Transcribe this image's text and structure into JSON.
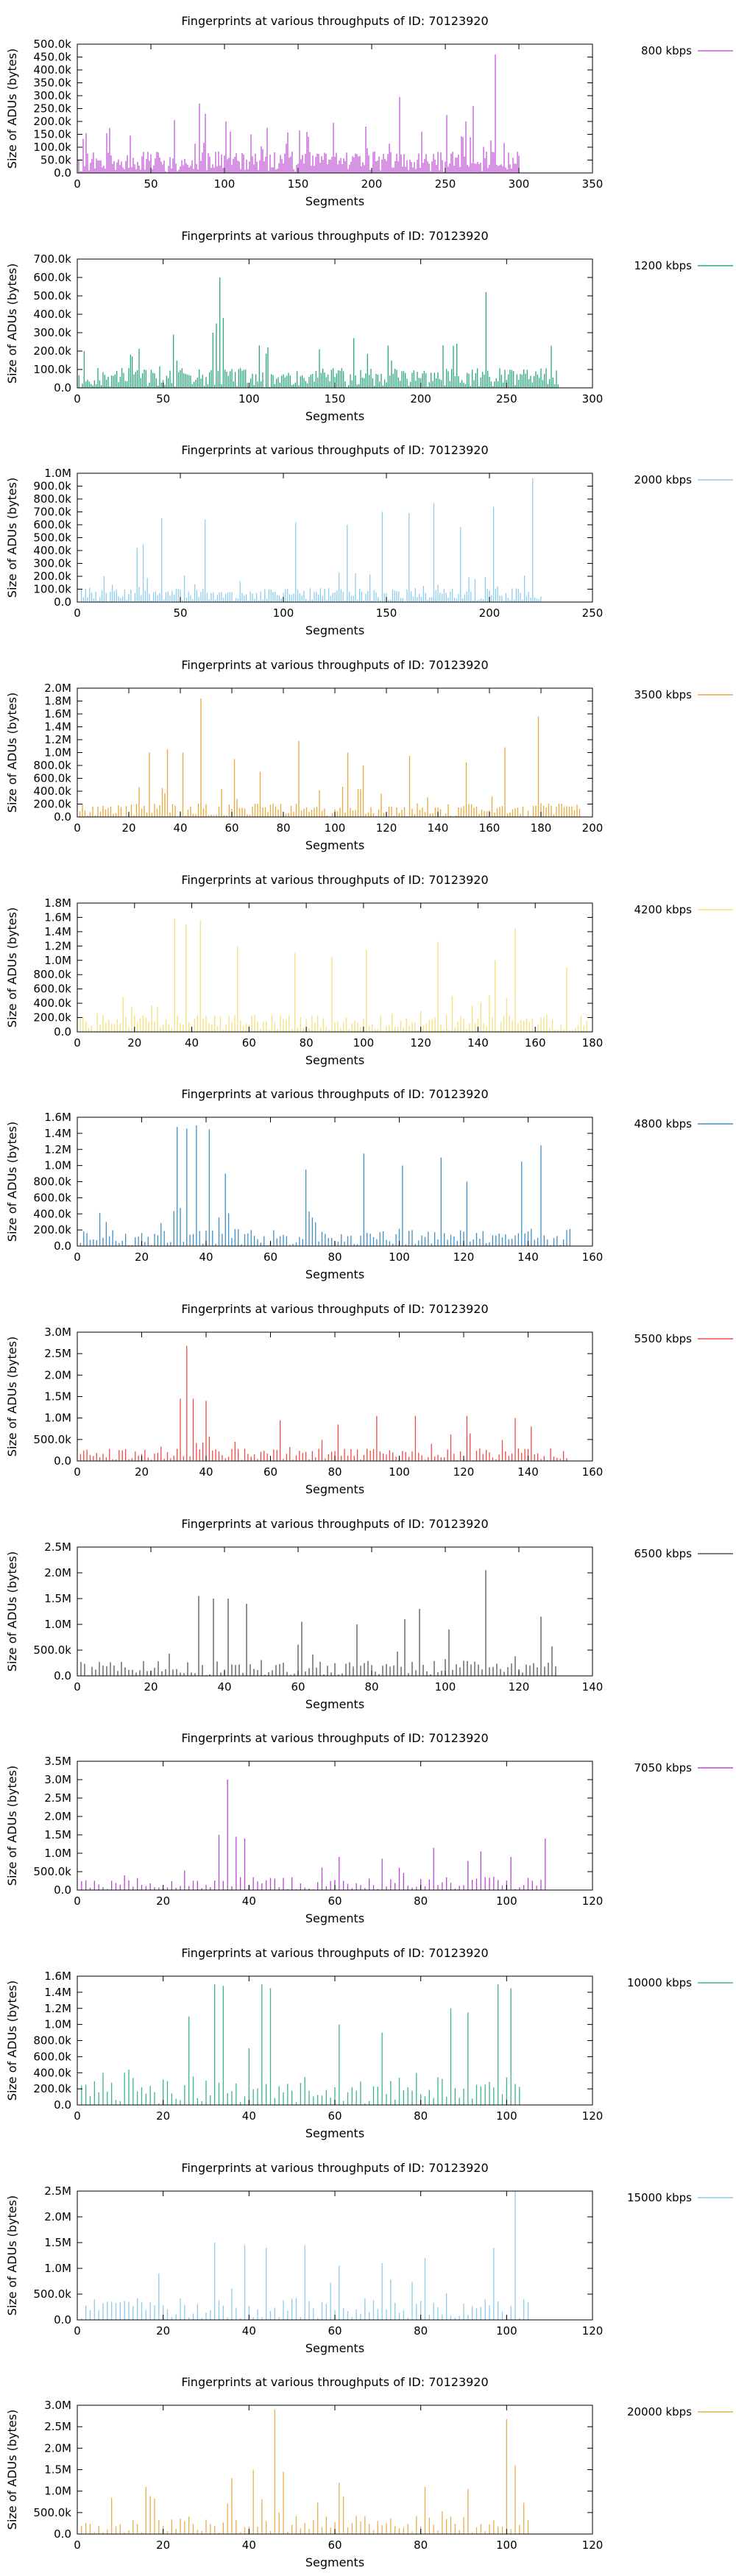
{
  "chart_data": [
    {
      "type": "bar",
      "title": "Fingerprints at various throughputs of ID: 70123920",
      "xlabel": "Segments",
      "ylabel": "Size of ADUs (bytes)",
      "legend": "800 kbps",
      "legend_position": "top-right",
      "color": "#c45bd6",
      "xlim": [
        0,
        350
      ],
      "ylim": [
        0,
        500000
      ],
      "xticks": [
        0,
        50,
        100,
        150,
        200,
        250,
        300,
        350
      ],
      "yticks": [
        0,
        50000,
        100000,
        150000,
        200000,
        250000,
        300000,
        350000,
        400000,
        450000,
        500000
      ],
      "ytick_labels": [
        "0.0",
        "50.0k",
        "100.0k",
        "150.0k",
        "200.0k",
        "250.0k",
        "300.0k",
        "350.0k",
        "400.0k",
        "450.0k",
        "500.0k"
      ],
      "grid": false,
      "n": 300,
      "peaks": [
        [
          283,
          460000
        ],
        [
          82,
          270000
        ],
        [
          218,
          295000
        ],
        [
          86,
          230000
        ],
        [
          100,
          200000
        ],
        [
          250,
          225000
        ],
        [
          173,
          195000
        ],
        [
          263,
          200000
        ],
        [
          65,
          205000
        ],
        [
          195,
          180000
        ],
        [
          128,
          175000
        ],
        [
          150,
          165000
        ],
        [
          5,
          155000
        ],
        [
          35,
          145000
        ],
        [
          117,
          150000
        ],
        [
          268,
          260000
        ],
        [
          233,
          160000
        ]
      ],
      "base": 70000
    },
    {
      "type": "bar",
      "title": "Fingerprints at various throughputs of ID: 70123920",
      "xlabel": "Segments",
      "ylabel": "Size of ADUs (bytes)",
      "legend": "1200 kbps",
      "legend_position": "top-right",
      "color": "#2aa87a",
      "xlim": [
        0,
        300
      ],
      "ylim": [
        0,
        700000
      ],
      "xticks": [
        0,
        50,
        100,
        150,
        200,
        250,
        300
      ],
      "yticks": [
        0,
        100000,
        200000,
        300000,
        400000,
        500000,
        600000,
        700000
      ],
      "ytick_labels": [
        "0.0",
        "100.0k",
        "200.0k",
        "300.0k",
        "400.0k",
        "500.0k",
        "600.0k",
        "700.0k"
      ],
      "grid": false,
      "n": 280,
      "peaks": [
        [
          82,
          600000
        ],
        [
          237,
          520000
        ],
        [
          84,
          380000
        ],
        [
          80,
          350000
        ],
        [
          78,
          300000
        ],
        [
          55,
          290000
        ],
        [
          160,
          270000
        ],
        [
          220,
          240000
        ],
        [
          180,
          230000
        ],
        [
          110,
          220000
        ],
        [
          140,
          210000
        ],
        [
          3,
          200000
        ],
        [
          30,
          180000
        ]
      ],
      "base": 90000
    },
    {
      "type": "bar",
      "title": "Fingerprints at various throughputs of ID: 70123920",
      "xlabel": "Segments",
      "ylabel": "Size of ADUs (bytes)",
      "legend": "2000 kbps",
      "legend_position": "top-right",
      "color": "#8ccdf2",
      "xlim": [
        0,
        250
      ],
      "ylim": [
        0,
        1000000
      ],
      "xticks": [
        0,
        50,
        100,
        150,
        200,
        250
      ],
      "yticks": [
        0,
        100000,
        200000,
        300000,
        400000,
        500000,
        600000,
        700000,
        800000,
        900000,
        1000000
      ],
      "ytick_labels": [
        "0.0",
        "100.0k",
        "200.0k",
        "300.0k",
        "400.0k",
        "500.0k",
        "600.0k",
        "700.0k",
        "800.0k",
        "900.0k",
        "1.0M"
      ],
      "grid": false,
      "n": 225,
      "peaks": [
        [
          220,
          960000
        ],
        [
          172,
          770000
        ],
        [
          201,
          740000
        ],
        [
          147,
          700000
        ],
        [
          160,
          690000
        ],
        [
          40,
          650000
        ],
        [
          61,
          640000
        ],
        [
          105,
          620000
        ],
        [
          130,
          600000
        ],
        [
          185,
          580000
        ],
        [
          31,
          450000
        ],
        [
          28,
          420000
        ],
        [
          12,
          200000
        ]
      ],
      "base": 90000
    },
    {
      "type": "bar",
      "title": "Fingerprints at various throughputs of ID: 70123920",
      "xlabel": "Segments",
      "ylabel": "Size of ADUs (bytes)",
      "legend": "3500 kbps",
      "legend_position": "top-right",
      "color": "#e5a83c",
      "xlim": [
        0,
        200
      ],
      "ylim": [
        0,
        2000000
      ],
      "xticks": [
        0,
        20,
        40,
        60,
        80,
        100,
        120,
        140,
        160,
        180,
        200
      ],
      "yticks": [
        0,
        200000,
        400000,
        600000,
        800000,
        1000000,
        1200000,
        1400000,
        1600000,
        1800000,
        2000000
      ],
      "ytick_labels": [
        "0.0",
        "200.0k",
        "400.0k",
        "600.0k",
        "800.0k",
        "1.0M",
        "1.2M",
        "1.4M",
        "1.6M",
        "1.8M",
        "2.0M"
      ],
      "grid": false,
      "n": 195,
      "peaks": [
        [
          47,
          1840000
        ],
        [
          178,
          1560000
        ],
        [
          85,
          1180000
        ],
        [
          104,
          1000000
        ],
        [
          128,
          950000
        ],
        [
          34,
          1050000
        ],
        [
          27,
          1000000
        ],
        [
          40,
          1000000
        ],
        [
          60,
          900000
        ],
        [
          150,
          850000
        ],
        [
          165,
          1080000
        ],
        [
          110,
          800000
        ],
        [
          70,
          700000
        ]
      ],
      "base": 180000
    },
    {
      "type": "bar",
      "title": "Fingerprints at various throughputs of ID: 70123920",
      "xlabel": "Segments",
      "ylabel": "Size of ADUs (bytes)",
      "legend": "4200 kbps",
      "legend_position": "top-right",
      "color": "#f5e07a",
      "xlim": [
        0,
        180
      ],
      "ylim": [
        0,
        1800000
      ],
      "xticks": [
        0,
        20,
        40,
        60,
        80,
        100,
        120,
        140,
        160,
        180
      ],
      "yticks": [
        0,
        200000,
        400000,
        600000,
        800000,
        1000000,
        1200000,
        1400000,
        1600000,
        1800000
      ],
      "ytick_labels": [
        "0.0",
        "200.0k",
        "400.0k",
        "600.0k",
        "800.0k",
        "1.0M",
        "1.2M",
        "1.4M",
        "1.6M",
        "1.8M"
      ],
      "grid": false,
      "n": 178,
      "peaks": [
        [
          33,
          1580000
        ],
        [
          37,
          1500000
        ],
        [
          42,
          1560000
        ],
        [
          152,
          1450000
        ],
        [
          125,
          1260000
        ],
        [
          100,
          1150000
        ],
        [
          75,
          1100000
        ],
        [
          55,
          1200000
        ],
        [
          145,
          1000000
        ],
        [
          170,
          900000
        ],
        [
          88,
          1050000
        ]
      ],
      "base": 200000
    },
    {
      "type": "bar",
      "title": "Fingerprints at various throughputs of ID: 70123920",
      "xlabel": "Segments",
      "ylabel": "Size of ADUs (bytes)",
      "legend": "4800 kbps",
      "legend_position": "top-right",
      "color": "#3d8fc6",
      "xlim": [
        0,
        160
      ],
      "ylim": [
        0,
        1600000
      ],
      "xticks": [
        0,
        20,
        40,
        60,
        80,
        100,
        120,
        140,
        160
      ],
      "yticks": [
        0,
        200000,
        400000,
        600000,
        800000,
        1000000,
        1200000,
        1400000,
        1600000
      ],
      "ytick_labels": [
        "0.0",
        "200.0k",
        "400.0k",
        "600.0k",
        "800.0k",
        "1.0M",
        "1.2M",
        "1.4M",
        "1.6M"
      ],
      "grid": false,
      "n": 153,
      "peaks": [
        [
          30,
          1480000
        ],
        [
          33,
          1460000
        ],
        [
          36,
          1500000
        ],
        [
          40,
          1450000
        ],
        [
          143,
          1250000
        ],
        [
          88,
          1150000
        ],
        [
          112,
          1100000
        ],
        [
          137,
          1050000
        ],
        [
          70,
          950000
        ],
        [
          45,
          900000
        ],
        [
          100,
          1000000
        ],
        [
          120,
          800000
        ]
      ],
      "base": 180000
    },
    {
      "type": "bar",
      "title": "Fingerprints at various throughputs of ID: 70123920",
      "xlabel": "Segments",
      "ylabel": "Size of ADUs (bytes)",
      "legend": "5500 kbps",
      "legend_position": "top-right",
      "color": "#ef4a43",
      "xlim": [
        0,
        160
      ],
      "ylim": [
        0,
        3000000
      ],
      "xticks": [
        0,
        20,
        40,
        60,
        80,
        100,
        120,
        140,
        160
      ],
      "yticks": [
        0,
        500000,
        1000000,
        1500000,
        2000000,
        2500000,
        3000000
      ],
      "ytick_labels": [
        "0.0",
        "500.0k",
        "1.0M",
        "1.5M",
        "2.0M",
        "2.5M",
        "3.0M"
      ],
      "grid": false,
      "n": 152,
      "peaks": [
        [
          33,
          2680000
        ],
        [
          31,
          1450000
        ],
        [
          35,
          1450000
        ],
        [
          39,
          1400000
        ],
        [
          92,
          1050000
        ],
        [
          104,
          1050000
        ],
        [
          120,
          1050000
        ],
        [
          135,
          1000000
        ],
        [
          62,
          950000
        ],
        [
          80,
          850000
        ],
        [
          140,
          800000
        ]
      ],
      "base": 250000
    },
    {
      "type": "bar",
      "title": "Fingerprints at various throughputs of ID: 70123920",
      "xlabel": "Segments",
      "ylabel": "Size of ADUs (bytes)",
      "legend": "6500 kbps",
      "legend_position": "top-right",
      "color": "#555555",
      "xlim": [
        0,
        140
      ],
      "ylim": [
        0,
        2500000
      ],
      "xticks": [
        0,
        20,
        40,
        60,
        80,
        100,
        120,
        140
      ],
      "yticks": [
        0,
        500000,
        1000000,
        1500000,
        2000000,
        2500000
      ],
      "ytick_labels": [
        "0.0",
        "500.0k",
        "1.0M",
        "1.5M",
        "2.0M",
        "2.5M"
      ],
      "grid": false,
      "n": 130,
      "peaks": [
        [
          110,
          2050000
        ],
        [
          32,
          1550000
        ],
        [
          36,
          1500000
        ],
        [
          40,
          1500000
        ],
        [
          45,
          1400000
        ],
        [
          125,
          1150000
        ],
        [
          92,
          1300000
        ],
        [
          88,
          1100000
        ],
        [
          75,
          1000000
        ],
        [
          60,
          1050000
        ],
        [
          100,
          900000
        ]
      ],
      "base": 250000
    },
    {
      "type": "bar",
      "title": "Fingerprints at various throughputs of ID: 70123920",
      "xlabel": "Segments",
      "ylabel": "Size of ADUs (bytes)",
      "legend": "7050 kbps",
      "legend_position": "top-right",
      "color": "#b448d0",
      "xlim": [
        0,
        120
      ],
      "ylim": [
        0,
        3500000
      ],
      "xticks": [
        0,
        20,
        40,
        60,
        80,
        100,
        120
      ],
      "yticks": [
        0,
        500000,
        1000000,
        1500000,
        2000000,
        2500000,
        3000000,
        3500000
      ],
      "ytick_labels": [
        "0.0",
        "500.0k",
        "1.0M",
        "1.5M",
        "2.0M",
        "2.5M",
        "3.0M",
        "3.5M"
      ],
      "grid": false,
      "n": 109,
      "peaks": [
        [
          34,
          3000000
        ],
        [
          32,
          1500000
        ],
        [
          36,
          1450000
        ],
        [
          38,
          1400000
        ],
        [
          108,
          1400000
        ],
        [
          82,
          1150000
        ],
        [
          93,
          1050000
        ],
        [
          60,
          900000
        ],
        [
          70,
          850000
        ],
        [
          100,
          900000
        ]
      ],
      "base": 300000
    },
    {
      "type": "bar",
      "title": "Fingerprints at various throughputs of ID: 70123920",
      "xlabel": "Segments",
      "ylabel": "Size of ADUs (bytes)",
      "legend": "10000 kbps",
      "legend_position": "top-right",
      "color": "#3bb58a",
      "xlim": [
        0,
        120
      ],
      "ylim": [
        0,
        1600000
      ],
      "xticks": [
        0,
        20,
        40,
        60,
        80,
        100,
        120
      ],
      "yticks": [
        0,
        200000,
        400000,
        600000,
        800000,
        1000000,
        1200000,
        1400000,
        1600000
      ],
      "ytick_labels": [
        "0.0",
        "200.0k",
        "400.0k",
        "600.0k",
        "800.0k",
        "1.0M",
        "1.2M",
        "1.4M",
        "1.6M"
      ],
      "grid": false,
      "n": 103,
      "peaks": [
        [
          31,
          1500000
        ],
        [
          33,
          1480000
        ],
        [
          42,
          1500000
        ],
        [
          44,
          1450000
        ],
        [
          97,
          1500000
        ],
        [
          100,
          1450000
        ],
        [
          86,
          1200000
        ],
        [
          90,
          1150000
        ],
        [
          25,
          1100000
        ],
        [
          60,
          1000000
        ],
        [
          70,
          900000
        ],
        [
          5,
          400000
        ],
        [
          10,
          400000
        ]
      ],
      "base": 300000
    },
    {
      "type": "bar",
      "title": "Fingerprints at various throughputs of ID: 70123920",
      "xlabel": "Segments",
      "ylabel": "Size of ADUs (bytes)",
      "legend": "15000 kbps",
      "legend_position": "top-right",
      "color": "#8ccbee",
      "xlim": [
        0,
        120
      ],
      "ylim": [
        0,
        2500000
      ],
      "xticks": [
        0,
        20,
        40,
        60,
        80,
        100,
        120
      ],
      "yticks": [
        0,
        500000,
        1000000,
        1500000,
        2000000,
        2500000
      ],
      "ytick_labels": [
        "0.0",
        "500.0k",
        "1.0M",
        "1.5M",
        "2.0M",
        "2.5M"
      ],
      "grid": false,
      "n": 105,
      "peaks": [
        [
          101,
          2500000
        ],
        [
          31,
          1500000
        ],
        [
          38,
          1450000
        ],
        [
          43,
          1400000
        ],
        [
          52,
          1450000
        ],
        [
          96,
          1400000
        ],
        [
          80,
          1200000
        ],
        [
          70,
          1100000
        ],
        [
          60,
          1050000
        ],
        [
          18,
          900000
        ]
      ],
      "base": 350000
    },
    {
      "type": "bar",
      "title": "Fingerprints at various throughputs of ID: 70123920",
      "xlabel": "Segments",
      "ylabel": "Size of ADUs (bytes)",
      "legend": "20000 kbps",
      "legend_position": "top-right",
      "color": "#e9ae4f",
      "xlim": [
        0,
        120
      ],
      "ylim": [
        0,
        3000000
      ],
      "xticks": [
        0,
        20,
        40,
        60,
        80,
        100,
        120
      ],
      "yticks": [
        0,
        500000,
        1000000,
        1500000,
        2000000,
        2500000,
        3000000
      ],
      "ytick_labels": [
        "0.0",
        "500.0k",
        "1.0M",
        "1.5M",
        "2.0M",
        "2.5M",
        "3.0M"
      ],
      "grid": false,
      "n": 105,
      "peaks": [
        [
          45,
          2900000
        ],
        [
          99,
          2680000
        ],
        [
          40,
          1500000
        ],
        [
          47,
          1450000
        ],
        [
          101,
          1600000
        ],
        [
          35,
          1300000
        ],
        [
          60,
          1200000
        ],
        [
          80,
          1100000
        ],
        [
          90,
          1050000
        ],
        [
          15,
          1100000
        ]
      ],
      "base": 350000
    }
  ]
}
